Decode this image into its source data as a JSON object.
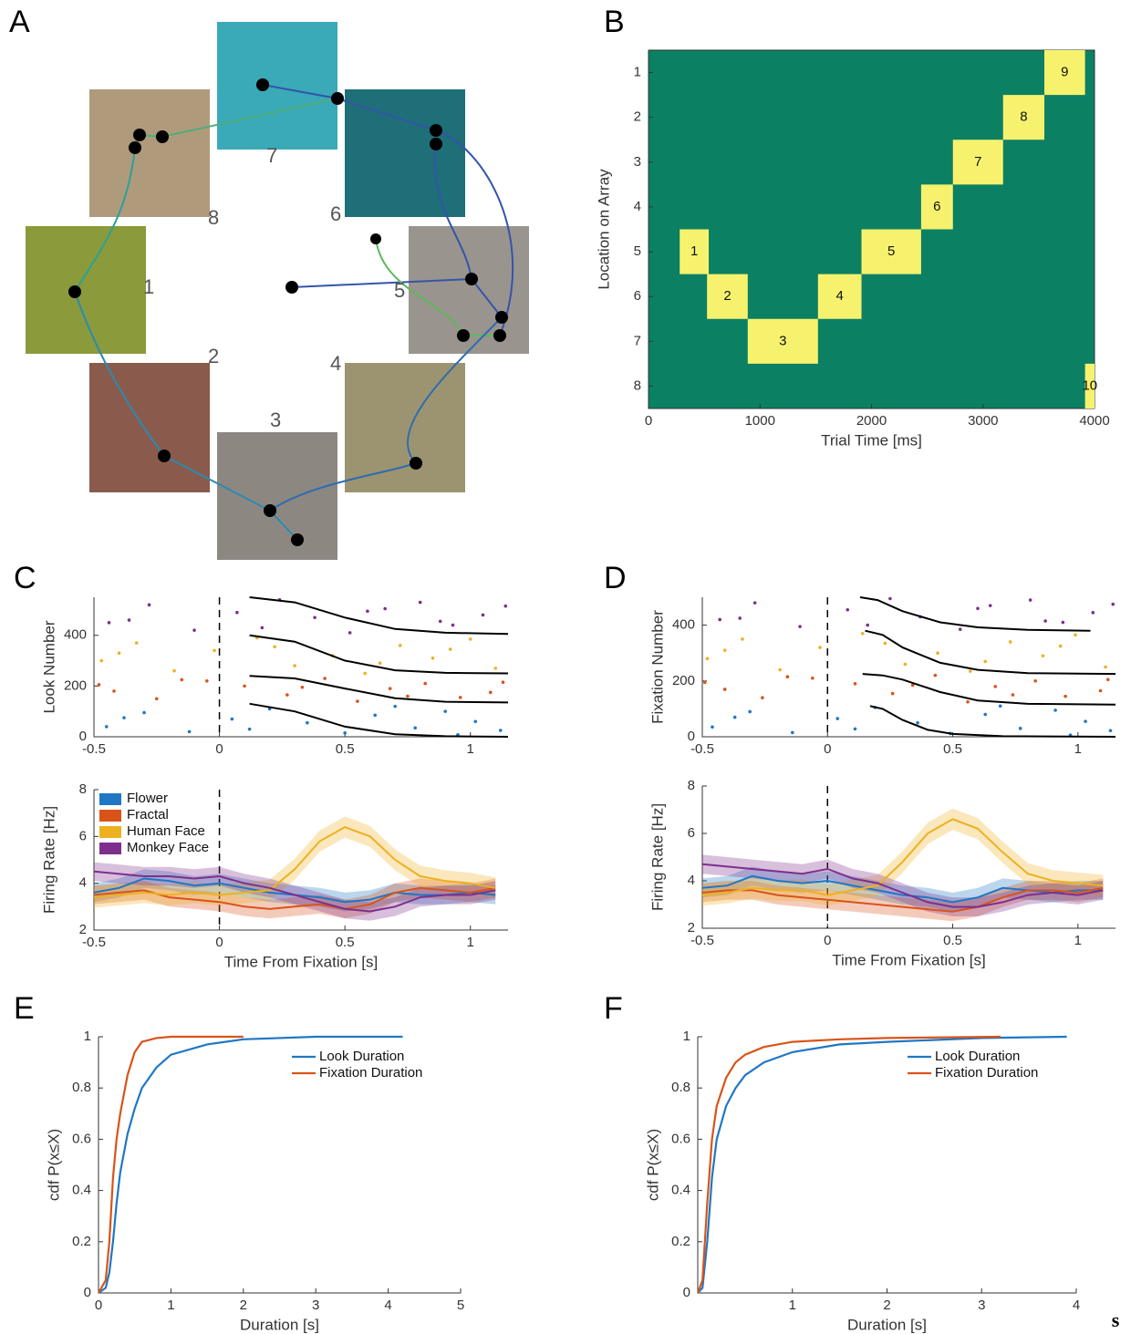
{
  "panel_labels": [
    "A",
    "B",
    "C",
    "D",
    "E",
    "F"
  ],
  "array_diagram": {
    "location_labels": [
      "1",
      "2",
      "3",
      "4",
      "5",
      "6",
      "7",
      "8"
    ]
  },
  "footer": "s",
  "chart_data": [
    {
      "type": "gantt",
      "xlabel": "Trial Time [ms]",
      "ylabel": "Location on Array",
      "xlim": [
        0,
        4000
      ],
      "xticks": [
        0,
        1000,
        2000,
        3000,
        4000
      ],
      "ylim": [
        0.5,
        8.5
      ],
      "yticks": [
        1,
        2,
        3,
        4,
        5,
        6,
        7,
        8
      ],
      "y_reversed": true,
      "background": "#0b8063",
      "color": "#f7f26e",
      "box": true,
      "segments": [
        {
          "label": "1",
          "row": 5,
          "start": 280,
          "end": 540
        },
        {
          "label": "2",
          "row": 6,
          "start": 525,
          "end": 890
        },
        {
          "label": "3",
          "row": 7,
          "start": 890,
          "end": 1520
        },
        {
          "label": "4",
          "row": 6,
          "start": 1520,
          "end": 1910
        },
        {
          "label": "5",
          "row": 5,
          "start": 1910,
          "end": 2445
        },
        {
          "label": "6",
          "row": 4,
          "start": 2445,
          "end": 2730
        },
        {
          "label": "7",
          "row": 3,
          "start": 2730,
          "end": 3180
        },
        {
          "label": "8",
          "row": 2,
          "start": 3180,
          "end": 3550
        },
        {
          "label": "9",
          "row": 1,
          "start": 3550,
          "end": 3915
        },
        {
          "label": "10",
          "row": 8,
          "start": 3915,
          "end": 4000
        }
      ]
    },
    {
      "type": "raster",
      "ylabel": "Look Number",
      "xlim": [
        -0.5,
        1.15
      ],
      "xticks": [
        -0.5,
        0,
        0.5,
        1
      ],
      "ylim": [
        0,
        550
      ],
      "yticks": [
        0,
        200,
        400
      ],
      "vline": 0,
      "series": [
        {
          "color": "#1f77c4",
          "x": [
            -0.45,
            -0.3,
            -0.12,
            0.05,
            0.2,
            0.35,
            0.5,
            0.62,
            0.78,
            0.9,
            1.02,
            1.12,
            -0.38,
            0.12,
            0.7,
            0.95
          ],
          "values": [
            40,
            95,
            20,
            70,
            110,
            55,
            15,
            85,
            35,
            100,
            60,
            25,
            75,
            30,
            120,
            8
          ]
        },
        {
          "color": "#d95319",
          "x": [
            -0.42,
            -0.25,
            -0.05,
            0.1,
            0.27,
            0.42,
            0.55,
            0.68,
            0.82,
            0.96,
            1.08,
            -0.15,
            0.33,
            0.75,
            1.13,
            -0.48
          ],
          "values": [
            180,
            150,
            220,
            200,
            165,
            230,
            140,
            190,
            210,
            155,
            175,
            225,
            195,
            160,
            215,
            205
          ]
        },
        {
          "color": "#edb120",
          "x": [
            -0.47,
            -0.33,
            -0.18,
            -0.02,
            0.15,
            0.3,
            0.45,
            0.58,
            0.72,
            0.85,
            1.0,
            1.1,
            -0.4,
            0.22,
            0.64,
            0.92
          ],
          "values": [
            300,
            370,
            260,
            340,
            390,
            280,
            320,
            250,
            360,
            310,
            385,
            270,
            330,
            355,
            290,
            345
          ]
        },
        {
          "color": "#7e2f8e",
          "x": [
            -0.44,
            -0.28,
            -0.1,
            0.07,
            0.24,
            0.38,
            0.52,
            0.66,
            0.8,
            0.93,
            1.05,
            1.14,
            -0.36,
            0.17,
            0.59,
            0.88
          ],
          "values": [
            450,
            520,
            420,
            490,
            540,
            470,
            410,
            505,
            530,
            440,
            480,
            515,
            460,
            430,
            495,
            455
          ]
        }
      ],
      "curve_color": "#000000",
      "curves": [
        {
          "x": [
            0.12,
            0.3,
            0.5,
            0.7,
            0.9,
            1.15
          ],
          "values": [
            550,
            530,
            470,
            425,
            410,
            405
          ]
        },
        {
          "x": [
            0.12,
            0.3,
            0.5,
            0.7,
            0.9,
            1.15
          ],
          "values": [
            400,
            375,
            300,
            262,
            252,
            250
          ]
        },
        {
          "x": [
            0.12,
            0.3,
            0.5,
            0.7,
            0.9,
            1.15
          ],
          "values": [
            240,
            230,
            190,
            152,
            138,
            135
          ]
        },
        {
          "x": [
            0.12,
            0.3,
            0.5,
            0.7,
            0.9,
            1.15
          ],
          "values": [
            130,
            100,
            40,
            10,
            2,
            0
          ]
        }
      ]
    },
    {
      "type": "band-line",
      "xlabel": "Time From Fixation [s]",
      "ylabel": "Firing Rate [Hz]",
      "xlim": [
        -0.5,
        1.15
      ],
      "xticks": [
        -0.5,
        0,
        0.5,
        1
      ],
      "ylim": [
        2,
        8
      ],
      "yticks": [
        2,
        4,
        6,
        8
      ],
      "vline": 0,
      "legend": "upper left",
      "x": [
        -0.5,
        -0.4,
        -0.3,
        -0.2,
        -0.1,
        0,
        0.1,
        0.2,
        0.3,
        0.4,
        0.5,
        0.6,
        0.7,
        0.8,
        0.9,
        1.0,
        1.1
      ],
      "series": [
        {
          "name": "Flower",
          "color": "#1f77c4",
          "error": 0.4,
          "values": [
            3.6,
            3.8,
            4.2,
            4.1,
            3.9,
            4.0,
            3.8,
            3.6,
            3.5,
            3.4,
            3.2,
            3.3,
            3.6,
            3.5,
            3.5,
            3.6,
            3.5
          ]
        },
        {
          "name": "Fractal",
          "color": "#d95319",
          "error": 0.4,
          "values": [
            3.5,
            3.6,
            3.7,
            3.4,
            3.3,
            3.2,
            3.0,
            2.9,
            3.0,
            3.1,
            2.9,
            3.1,
            3.6,
            3.8,
            3.7,
            3.6,
            3.8
          ]
        },
        {
          "name": "Human Face",
          "color": "#edb120",
          "error": 0.45,
          "values": [
            3.4,
            3.5,
            3.6,
            3.5,
            3.6,
            3.5,
            3.6,
            3.7,
            4.6,
            5.8,
            6.4,
            6.0,
            5.0,
            4.3,
            4.1,
            4.0,
            3.8
          ]
        },
        {
          "name": "Monkey Face",
          "color": "#7e2f8e",
          "error": 0.4,
          "values": [
            4.5,
            4.4,
            4.3,
            4.3,
            4.2,
            4.3,
            4.0,
            3.8,
            3.5,
            3.2,
            2.9,
            2.8,
            3.0,
            3.4,
            3.5,
            3.5,
            3.7
          ]
        }
      ]
    },
    {
      "type": "raster",
      "ylabel": "Fixation Number",
      "xlim": [
        -0.5,
        1.15
      ],
      "xticks": [
        -0.5,
        0,
        0.5,
        1
      ],
      "ylim": [
        0,
        500
      ],
      "yticks": [
        0,
        200,
        400
      ],
      "vline": 0,
      "series": [
        {
          "color": "#1f77c4",
          "x": [
            -0.46,
            -0.31,
            -0.14,
            0.04,
            0.19,
            0.36,
            0.49,
            0.63,
            0.77,
            0.91,
            1.03,
            1.13,
            -0.37,
            0.11,
            0.69,
            0.97
          ],
          "values": [
            35,
            90,
            15,
            65,
            105,
            50,
            12,
            80,
            30,
            95,
            55,
            22,
            70,
            28,
            110,
            6
          ]
        },
        {
          "color": "#d95319",
          "x": [
            -0.41,
            -0.26,
            -0.06,
            0.11,
            0.26,
            0.43,
            0.56,
            0.67,
            0.83,
            0.95,
            1.09,
            -0.16,
            0.34,
            0.74,
            1.12,
            -0.49
          ],
          "values": [
            170,
            140,
            210,
            190,
            155,
            220,
            125,
            180,
            200,
            145,
            165,
            215,
            185,
            150,
            205,
            195
          ]
        },
        {
          "color": "#edb120",
          "x": [
            -0.48,
            -0.34,
            -0.19,
            -0.03,
            0.14,
            0.31,
            0.44,
            0.57,
            0.73,
            0.86,
            0.99,
            1.11,
            -0.41,
            0.23,
            0.63,
            0.93
          ],
          "values": [
            280,
            350,
            240,
            320,
            370,
            260,
            300,
            235,
            340,
            290,
            365,
            250,
            310,
            335,
            270,
            325
          ]
        },
        {
          "color": "#7e2f8e",
          "x": [
            -0.43,
            -0.29,
            -0.11,
            0.08,
            0.25,
            0.37,
            0.53,
            0.65,
            0.81,
            0.94,
            1.06,
            1.14,
            -0.35,
            0.16,
            0.6,
            0.87
          ],
          "values": [
            420,
            480,
            395,
            455,
            495,
            430,
            385,
            470,
            490,
            410,
            445,
            475,
            425,
            400,
            460,
            415
          ]
        }
      ],
      "curve_color": "#000000",
      "curves": [
        {
          "x": [
            0.13,
            0.2,
            0.3,
            0.45,
            0.6,
            0.8,
            1.05
          ],
          "values": [
            500,
            490,
            450,
            410,
            392,
            383,
            380
          ]
        },
        {
          "x": [
            0.15,
            0.22,
            0.3,
            0.45,
            0.6,
            0.8,
            1.15
          ],
          "values": [
            380,
            365,
            320,
            265,
            240,
            228,
            225
          ]
        },
        {
          "x": [
            0.14,
            0.22,
            0.3,
            0.45,
            0.6,
            0.8,
            1.15
          ],
          "values": [
            225,
            220,
            205,
            160,
            130,
            118,
            115
          ]
        },
        {
          "x": [
            0.17,
            0.22,
            0.3,
            0.4,
            0.5,
            0.7,
            1.15
          ],
          "values": [
            110,
            100,
            60,
            25,
            10,
            2,
            0
          ]
        }
      ]
    },
    {
      "type": "band-line",
      "xlabel": "Time From Fixation [s]",
      "ylabel": "Firing Rate [Hz]",
      "xlim": [
        -0.5,
        1.15
      ],
      "xticks": [
        -0.5,
        0,
        0.5,
        1
      ],
      "ylim": [
        2,
        8
      ],
      "yticks": [
        2,
        4,
        6,
        8
      ],
      "vline": 0,
      "x": [
        -0.5,
        -0.4,
        -0.3,
        -0.2,
        -0.1,
        0,
        0.1,
        0.2,
        0.3,
        0.4,
        0.5,
        0.6,
        0.7,
        0.8,
        0.9,
        1.0,
        1.1
      ],
      "series": [
        {
          "color": "#1f77c4",
          "error": 0.4,
          "values": [
            3.7,
            3.8,
            4.2,
            4.0,
            3.9,
            4.0,
            3.8,
            3.6,
            3.4,
            3.3,
            3.1,
            3.3,
            3.7,
            3.6,
            3.5,
            3.6,
            3.6
          ]
        },
        {
          "color": "#d95319",
          "error": 0.4,
          "values": [
            3.5,
            3.6,
            3.6,
            3.4,
            3.3,
            3.2,
            3.1,
            3.0,
            2.9,
            2.8,
            2.7,
            2.9,
            3.3,
            3.6,
            3.6,
            3.5,
            3.7
          ]
        },
        {
          "color": "#edb120",
          "error": 0.45,
          "values": [
            3.4,
            3.5,
            3.7,
            3.6,
            3.6,
            3.4,
            3.6,
            3.8,
            4.8,
            6.0,
            6.6,
            6.2,
            5.2,
            4.3,
            4.0,
            3.9,
            3.8
          ]
        },
        {
          "color": "#7e2f8e",
          "error": 0.4,
          "values": [
            4.7,
            4.6,
            4.5,
            4.4,
            4.3,
            4.5,
            4.1,
            3.9,
            3.5,
            3.1,
            2.9,
            2.9,
            3.1,
            3.4,
            3.5,
            3.4,
            3.6
          ]
        }
      ]
    },
    {
      "type": "line",
      "xlabel": "Duration   [s]",
      "ylabel": "cdf P(x≤X)",
      "xlim": [
        0,
        5
      ],
      "xticks": [
        0,
        1,
        2,
        3,
        4,
        5
      ],
      "ylim": [
        0,
        1
      ],
      "yticks": [
        0,
        0.2,
        0.4,
        0.6,
        0.8,
        1
      ],
      "legend": "upper right",
      "series": [
        {
          "name": "Look Duration",
          "color": "#1f77c4",
          "x": [
            0,
            0.1,
            0.15,
            0.2,
            0.25,
            0.3,
            0.4,
            0.5,
            0.6,
            0.8,
            1,
            1.5,
            2,
            3,
            4.2
          ],
          "values": [
            0,
            0.02,
            0.08,
            0.2,
            0.35,
            0.47,
            0.62,
            0.72,
            0.8,
            0.88,
            0.93,
            0.97,
            0.99,
            1,
            1
          ]
        },
        {
          "name": "Fixation Duration",
          "color": "#d95319",
          "x": [
            0,
            0.1,
            0.15,
            0.2,
            0.25,
            0.3,
            0.4,
            0.5,
            0.6,
            0.8,
            1,
            1.5,
            2
          ],
          "values": [
            0,
            0.05,
            0.2,
            0.45,
            0.6,
            0.7,
            0.85,
            0.94,
            0.98,
            0.995,
            1,
            1,
            1
          ]
        }
      ]
    },
    {
      "type": "line",
      "xlabel": "Duration   [s]",
      "ylabel": "cdf P(x≤X)",
      "xlim": [
        0,
        4
      ],
      "xticks": [
        1,
        2,
        3,
        4
      ],
      "ylim": [
        0,
        1
      ],
      "yticks": [
        0,
        0.2,
        0.4,
        0.6,
        0.8,
        1
      ],
      "legend": "upper right",
      "series": [
        {
          "name": "Look Duration",
          "color": "#1f77c4",
          "x": [
            0,
            0.05,
            0.1,
            0.15,
            0.2,
            0.3,
            0.4,
            0.5,
            0.7,
            1,
            1.5,
            2,
            3,
            3.9
          ],
          "values": [
            0,
            0.02,
            0.2,
            0.45,
            0.6,
            0.73,
            0.8,
            0.85,
            0.9,
            0.94,
            0.97,
            0.98,
            0.995,
            1
          ]
        },
        {
          "name": "Fixation Duration",
          "color": "#d95319",
          "x": [
            0,
            0.05,
            0.1,
            0.15,
            0.2,
            0.3,
            0.4,
            0.5,
            0.7,
            1,
            1.5,
            2,
            3.2
          ],
          "values": [
            0,
            0.05,
            0.35,
            0.6,
            0.73,
            0.84,
            0.9,
            0.93,
            0.96,
            0.98,
            0.99,
            0.995,
            1
          ]
        }
      ]
    }
  ]
}
